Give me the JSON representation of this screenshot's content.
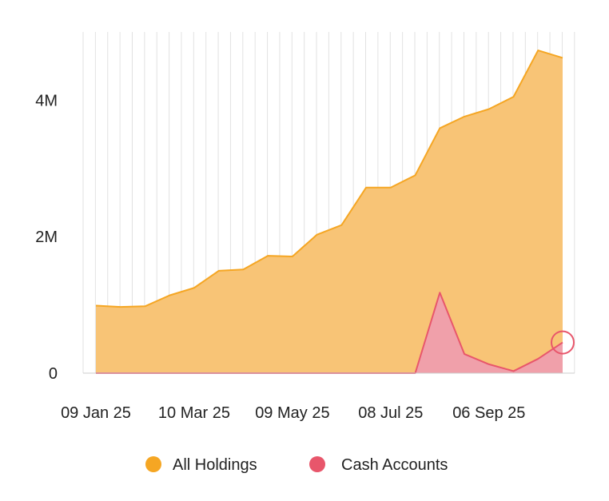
{
  "chart_data": {
    "type": "area",
    "title": "",
    "xlabel": "",
    "ylabel": "",
    "ylim": [
      0,
      5000000
    ],
    "y_ticks": [
      {
        "value": 0,
        "label": "0"
      },
      {
        "value": 2000000,
        "label": "2M"
      },
      {
        "value": 4000000,
        "label": "4M"
      }
    ],
    "x_tick_labels": [
      "09 Jan 25",
      "10 Mar 25",
      "09 May 25",
      "08 Jul 25",
      "06 Sep 25"
    ],
    "x_tick_indices": [
      0,
      4,
      8,
      12,
      16
    ],
    "grid": "vertical",
    "legend_position": "bottom",
    "x": [
      "09 Jan 25",
      "24 Jan 25",
      "08 Feb 25",
      "23 Feb 25",
      "10 Mar 25",
      "25 Mar 25",
      "09 Apr 25",
      "24 Apr 25",
      "09 May 25",
      "24 May 25",
      "08 Jun 25",
      "23 Jun 25",
      "08 Jul 25",
      "23 Jul 25",
      "07 Aug 25",
      "22 Aug 25",
      "06 Sep 25",
      "21 Sep 25",
      "06 Oct 25",
      "21 Oct 25"
    ],
    "series": [
      {
        "name": "All Holdings",
        "color": "#f5a623",
        "fill": "#f8c476",
        "values": [
          990000,
          970000,
          980000,
          1140000,
          1250000,
          1500000,
          1520000,
          1720000,
          1710000,
          2030000,
          2170000,
          2720000,
          2720000,
          2900000,
          3590000,
          3760000,
          3870000,
          4050000,
          4730000,
          4620000
        ]
      },
      {
        "name": "Cash Accounts",
        "color": "#e8566b",
        "fill": "#f0a0aa",
        "values": [
          0,
          0,
          0,
          0,
          0,
          0,
          0,
          0,
          0,
          0,
          0,
          0,
          0,
          0,
          1180000,
          280000,
          130000,
          30000,
          210000,
          450000
        ]
      }
    ],
    "highlight": {
      "series": "Cash Accounts",
      "index": 19
    }
  }
}
